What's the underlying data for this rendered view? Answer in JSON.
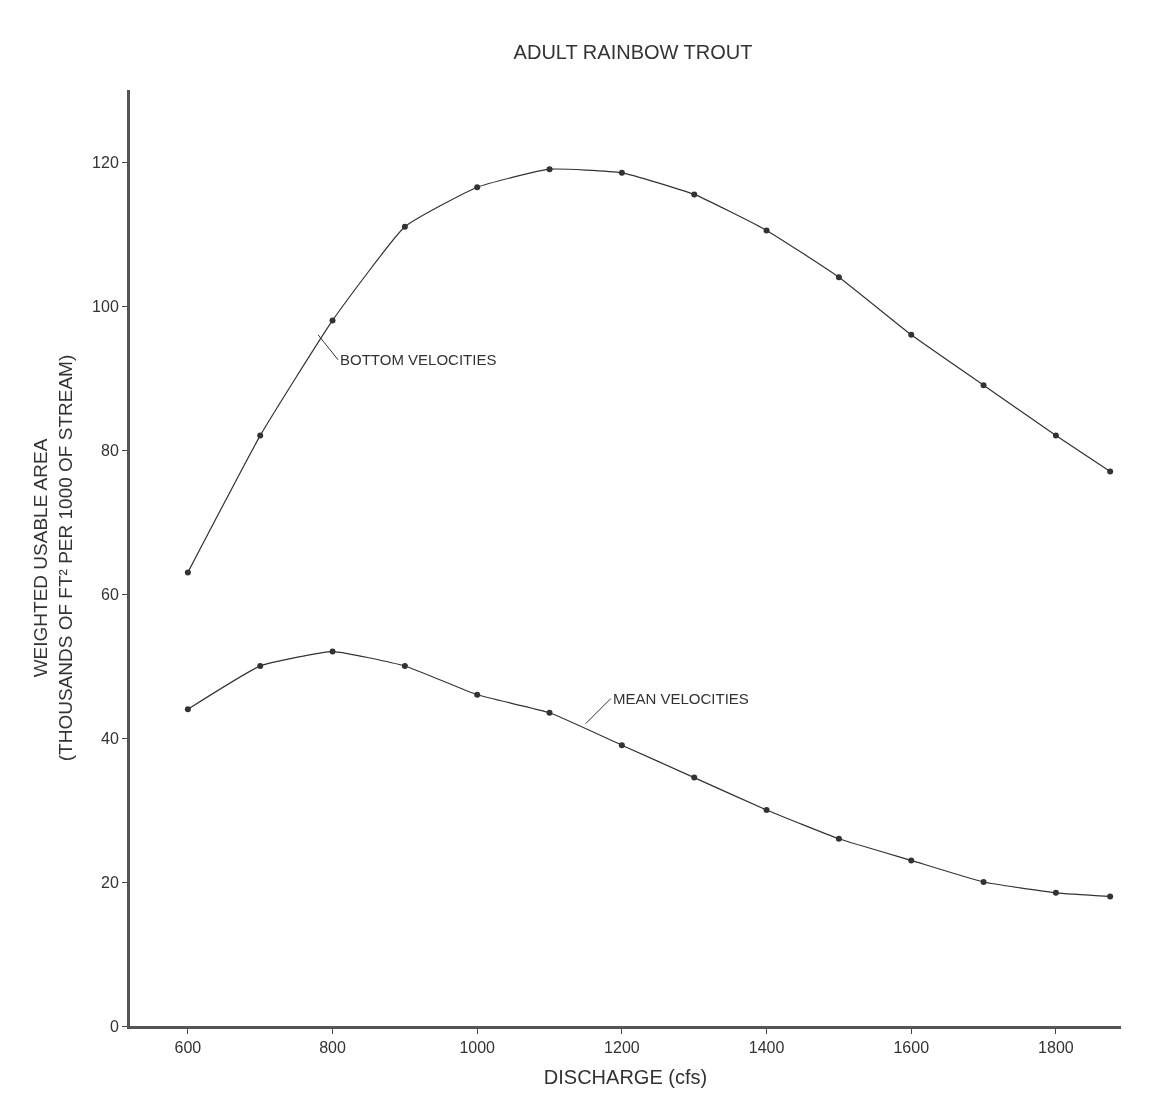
{
  "chart_data": {
    "type": "line",
    "title": "ADULT RAINBOW TROUT",
    "xlabel": "DISCHARGE (cfs)",
    "ylabel": "WEIGHTED USABLE AREA\n(THOUSANDS OF FT² PER 1000 OF STREAM)",
    "x": [
      600,
      700,
      800,
      900,
      1000,
      1100,
      1200,
      1300,
      1400,
      1500,
      1600,
      1700,
      1800,
      1875
    ],
    "series": [
      {
        "color": "#333333",
        "values": [
          63,
          82,
          98,
          111,
          116.5,
          119,
          118.5,
          115.5,
          110.5,
          104,
          96,
          89,
          82,
          77
        ]
      },
      {
        "color": "#333333",
        "values": [
          44,
          50,
          52,
          50,
          46,
          43.5,
          39,
          34.5,
          30,
          26,
          23,
          20,
          18.5,
          18
        ]
      }
    ],
    "annotations": [
      {
        "text": "BOTTOM VELOCITIES",
        "x": 780,
        "y": 96
      },
      {
        "text": "MEAN VELOCITIES",
        "x": 1150,
        "y": 42
      }
    ],
    "xlim": [
      520,
      1890
    ],
    "ylim": [
      0,
      130
    ],
    "xticks": [
      600,
      800,
      1000,
      1200,
      1400,
      1600,
      1800
    ],
    "yticks": [
      0,
      20,
      40,
      60,
      80,
      100,
      120
    ],
    "marker": "circle",
    "line_style": "solid"
  }
}
